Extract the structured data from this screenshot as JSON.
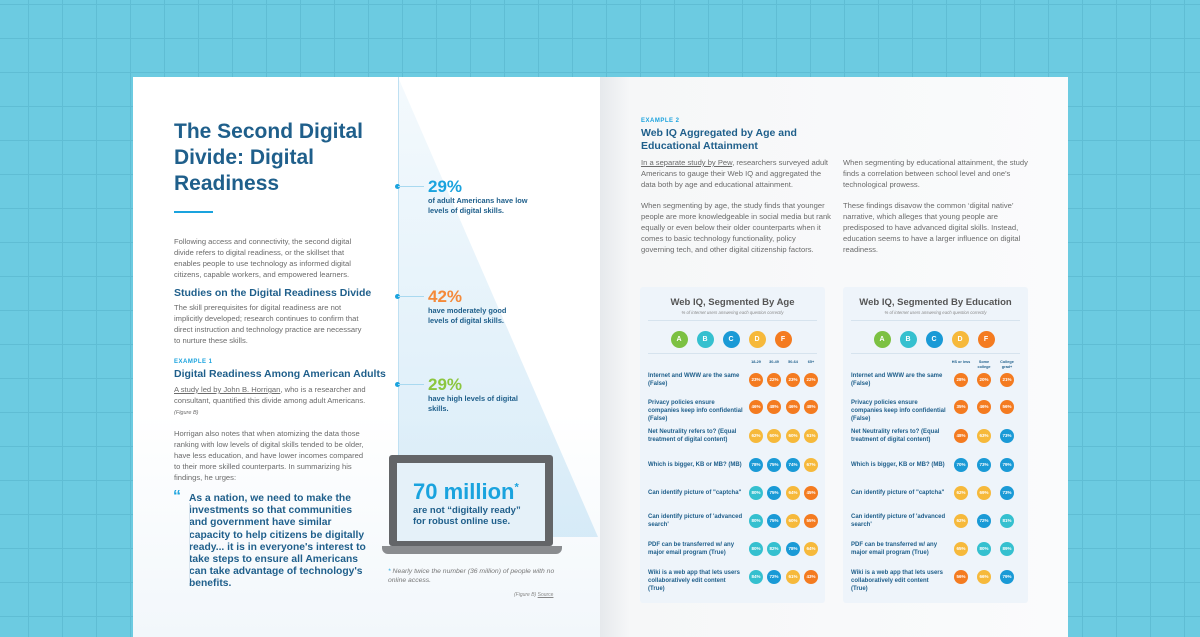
{
  "colors": {
    "A": "#7cc142",
    "B": "#35c0cf",
    "C": "#1a9ad6",
    "D": "#f6b93b",
    "F": "#f47b20"
  },
  "left": {
    "title": "The Second Digital Divide: Digital Readiness",
    "intro": "Following access and connectivity, the second digital divide refers to digital readiness, or the skillset that enables people to use technology as informed digital citizens, capable workers, and empowered learners.",
    "studies_heading": "Studies on the Digital Readiness Divide",
    "studies_body": "The skill prerequisites for digital readiness are not implicitly developed; research continues to confirm that direct instruction and technology practice are necessary to nurture these skills.",
    "example_kicker": "EXAMPLE 1",
    "example_heading": "Digital Readiness Among American Adults",
    "example_link": "A study led by John B. Horrigan",
    "example_body": ", who is a researcher and consultant, quantified this divide among adult Americans.",
    "example_fig": "(Figure B)",
    "horrigan_body": "Horrigan also notes that when atomizing the data those ranking with low levels of digital skills tended to be older, have less education, and have lower incomes compared to their more skilled counterparts. In summarizing his findings, he urges:",
    "quote_mark": "“",
    "quote": "As a nation, we need to make the investments so that communities and government have similar capacity to help citizens be digitally ready... it is in everyone's interest to take steps to ensure all Americans can take advantage of technology's benefits."
  },
  "stats": [
    {
      "pct": "29%",
      "text": "of adult Americans have low levels of digital skills.",
      "color": "#1aa3de"
    },
    {
      "pct": "42%",
      "text": "have moderately good levels of digital skills.",
      "color": "#f48a3a"
    },
    {
      "pct": "29%",
      "text": "have high levels of digital skills.",
      "color": "#8cc63f"
    }
  ],
  "laptop": {
    "big": "70 million",
    "asterisk": "*",
    "sub": "are not “digitally ready” for robust online use."
  },
  "footnote": {
    "star": "*",
    "text": "Nearly twice the number (36 million) of people with no online access.",
    "figure": "(Figure B)",
    "source": "Source"
  },
  "right": {
    "kicker": "EXAMPLE 2",
    "heading": "Web IQ Aggregated by Age and Educational Attainment",
    "p1_link": "In a separate study by Pew",
    "p1": ", researchers surveyed adult Americans to gauge their Web IQ and aggregated the data both by age and educational attainment.",
    "p2": "When segmenting by age, the study finds that younger people are more knowledgeable in social media but rank equally or even below their older counterparts when it comes to basic technology functionality, policy governing tech, and other digital citizenship factors.",
    "p3": "When segmenting by educational attainment, the study finds a correlation between school level and one's technological prowess.",
    "p4": "These findings disavow the common ‘digital native’ narrative, which alleges that young people are predisposed to have advanced digital skills. Instead, education seems to have a larger influence on digital readiness."
  },
  "grades": [
    "A",
    "B",
    "C",
    "D",
    "F"
  ],
  "questions": [
    "Internet and WWW are the same (False)",
    "Privacy policies ensure companies keep info confidential (False)",
    "Net Neutrality refers to? (Equal treatment of digital content)",
    "Which is bigger, KB or MB? (MB)",
    "Can identify picture of \"captcha\"",
    "Can identify picture of 'advanced search'",
    "PDF can be transferred w/ any major email program (True)",
    "Wiki is a web app that lets users collaboratively edit content (True)"
  ],
  "tables": [
    {
      "title": "Web IQ, Segmented By Age",
      "subtitle": "% of internet users answering each question correctly",
      "columns": [
        "18-29",
        "30-49",
        "50-64",
        "65+"
      ],
      "rows": [
        [
          [
            "23%",
            "F"
          ],
          [
            "22%",
            "F"
          ],
          [
            "23%",
            "F"
          ],
          [
            "22%",
            "F"
          ]
        ],
        [
          [
            "46%",
            "F"
          ],
          [
            "48%",
            "F"
          ],
          [
            "46%",
            "F"
          ],
          [
            "48%",
            "F"
          ]
        ],
        [
          [
            "62%",
            "D"
          ],
          [
            "60%",
            "D"
          ],
          [
            "60%",
            "D"
          ],
          [
            "61%",
            "D"
          ]
        ],
        [
          [
            "78%",
            "C"
          ],
          [
            "75%",
            "C"
          ],
          [
            "74%",
            "C"
          ],
          [
            "67%",
            "D"
          ]
        ],
        [
          [
            "80%",
            "B"
          ],
          [
            "75%",
            "C"
          ],
          [
            "64%",
            "D"
          ],
          [
            "45%",
            "F"
          ]
        ],
        [
          [
            "80%",
            "B"
          ],
          [
            "75%",
            "C"
          ],
          [
            "60%",
            "D"
          ],
          [
            "55%",
            "F"
          ]
        ],
        [
          [
            "80%",
            "B"
          ],
          [
            "82%",
            "B"
          ],
          [
            "78%",
            "C"
          ],
          [
            "64%",
            "D"
          ]
        ],
        [
          [
            "84%",
            "B"
          ],
          [
            "72%",
            "C"
          ],
          [
            "61%",
            "D"
          ],
          [
            "43%",
            "F"
          ]
        ]
      ]
    },
    {
      "title": "Web IQ, Segmented By Education",
      "subtitle": "% of internet users answering each question correctly",
      "columns": [
        "HS or less",
        "Some college",
        "College grad+"
      ],
      "rows": [
        [
          [
            "28%",
            "F"
          ],
          [
            "20%",
            "F"
          ],
          [
            "21%",
            "F"
          ]
        ],
        [
          [
            "35%",
            "F"
          ],
          [
            "46%",
            "F"
          ],
          [
            "56%",
            "F"
          ]
        ],
        [
          [
            "48%",
            "F"
          ],
          [
            "63%",
            "D"
          ],
          [
            "73%",
            "C"
          ]
        ],
        [
          [
            "70%",
            "C"
          ],
          [
            "73%",
            "C"
          ],
          [
            "79%",
            "C"
          ]
        ],
        [
          [
            "62%",
            "D"
          ],
          [
            "69%",
            "D"
          ],
          [
            "73%",
            "C"
          ]
        ],
        [
          [
            "62%",
            "D"
          ],
          [
            "72%",
            "C"
          ],
          [
            "81%",
            "B"
          ]
        ],
        [
          [
            "65%",
            "D"
          ],
          [
            "80%",
            "B"
          ],
          [
            "89%",
            "B"
          ]
        ],
        [
          [
            "56%",
            "F"
          ],
          [
            "66%",
            "D"
          ],
          [
            "79%",
            "C"
          ]
        ]
      ]
    }
  ]
}
